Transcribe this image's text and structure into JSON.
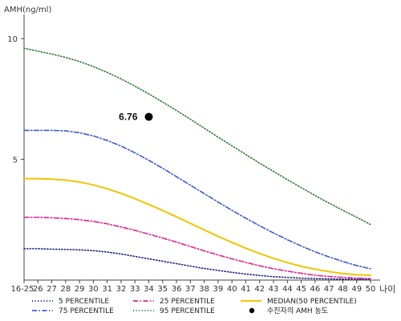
{
  "chart_data": {
    "type": "line",
    "ylabel": "AMH(ng/ml)",
    "xlabel": "나이",
    "ylim": [
      0,
      11
    ],
    "y_ticks": [
      {
        "value": 5,
        "label": "5"
      },
      {
        "value": 10,
        "label": "10"
      }
    ],
    "categories": [
      "16-25",
      "26",
      "27",
      "28",
      "29",
      "30",
      "31",
      "32",
      "33",
      "34",
      "35",
      "36",
      "37",
      "38",
      "39",
      "40",
      "41",
      "42",
      "43",
      "44",
      "45",
      "46",
      "47",
      "48",
      "49",
      "50"
    ],
    "grid": false,
    "series": [
      {
        "name": "5 PERCENTILE",
        "color": "#1a237e",
        "dash": "dotted",
        "legend_row": 0,
        "legend_col": 0,
        "values": [
          1.3,
          1.3,
          1.28,
          1.27,
          1.25,
          1.22,
          1.16,
          1.08,
          0.98,
          0.88,
          0.78,
          0.68,
          0.58,
          0.48,
          0.4,
          0.32,
          0.25,
          0.19,
          0.14,
          0.11,
          0.08,
          0.06,
          0.05,
          0.04,
          0.03,
          0.03
        ]
      },
      {
        "name": "25 PERCENTILE",
        "color": "#e91e8c",
        "dash": "dashdot",
        "legend_row": 0,
        "legend_col": 1,
        "values": [
          2.6,
          2.6,
          2.58,
          2.55,
          2.5,
          2.43,
          2.33,
          2.2,
          2.06,
          1.9,
          1.74,
          1.57,
          1.39,
          1.21,
          1.04,
          0.88,
          0.73,
          0.59,
          0.47,
          0.37,
          0.28,
          0.2,
          0.15,
          0.11,
          0.08,
          0.06
        ]
      },
      {
        "name": "MEDIAN(50 PERCENTILE)",
        "color": "#f4c400",
        "dash": "solid",
        "legend_row": 0,
        "legend_col": 2,
        "values": [
          4.2,
          4.2,
          4.18,
          4.14,
          4.06,
          3.94,
          3.78,
          3.59,
          3.37,
          3.13,
          2.88,
          2.62,
          2.35,
          2.08,
          1.81,
          1.56,
          1.32,
          1.1,
          0.9,
          0.72,
          0.57,
          0.45,
          0.35,
          0.27,
          0.22,
          0.2
        ]
      },
      {
        "name": "75 PERCENTILE",
        "color": "#3b5bd6",
        "dash": "dashdot",
        "legend_row": 1,
        "legend_col": 0,
        "values": [
          6.2,
          6.2,
          6.2,
          6.18,
          6.1,
          5.97,
          5.78,
          5.55,
          5.27,
          4.96,
          4.63,
          4.28,
          3.93,
          3.58,
          3.23,
          2.89,
          2.56,
          2.25,
          1.95,
          1.67,
          1.41,
          1.17,
          0.96,
          0.77,
          0.6,
          0.47
        ]
      },
      {
        "name": "95 PERCENTILE",
        "color": "#2e7d32",
        "dash": "dotted",
        "legend_row": 1,
        "legend_col": 1,
        "values": [
          9.6,
          9.48,
          9.36,
          9.22,
          9.05,
          8.84,
          8.6,
          8.33,
          8.03,
          7.71,
          7.37,
          7.02,
          6.66,
          6.29,
          5.92,
          5.56,
          5.2,
          4.84,
          4.5,
          4.16,
          3.83,
          3.5,
          3.19,
          2.89,
          2.6,
          2.3
        ]
      }
    ],
    "marker": {
      "x_category": "34",
      "value": 6.76,
      "label": "6.76",
      "legend_label": "수진자의 AMH 농도",
      "color": "#000000",
      "legend_row": 1,
      "legend_col": 2
    }
  }
}
